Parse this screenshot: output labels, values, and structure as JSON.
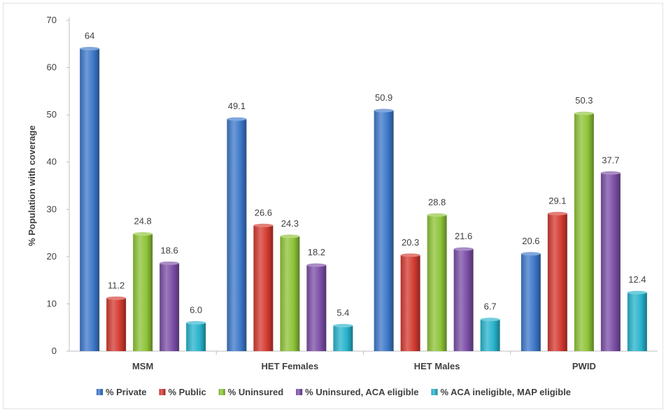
{
  "chart_data": {
    "type": "bar",
    "title": "",
    "xlabel": "",
    "ylabel": "% Population with coverage",
    "ylim": [
      0,
      70
    ],
    "yticks": [
      0,
      10,
      20,
      30,
      40,
      50,
      60,
      70
    ],
    "grid": false,
    "legend_position": "bottom",
    "categories": [
      "MSM",
      "HET Females",
      "HET Males",
      "PWID"
    ],
    "series": [
      {
        "name": "% Private",
        "color": "#3d78c9",
        "values": [
          64,
          49.1,
          50.9,
          20.6
        ],
        "labels": [
          "64",
          "49.1",
          "50.9",
          "20.6"
        ]
      },
      {
        "name": "% Public",
        "color": "#d33a30",
        "values": [
          11.2,
          26.6,
          20.3,
          29.1
        ],
        "labels": [
          "11.2",
          "26.6",
          "20.3",
          "29.1"
        ]
      },
      {
        "name": "% Uninsured",
        "color": "#8ec337",
        "values": [
          24.8,
          24.3,
          28.8,
          50.3
        ],
        "labels": [
          "24.8",
          "24.3",
          "28.8",
          "50.3"
        ]
      },
      {
        "name": "% Uninsured, ACA eligible",
        "color": "#7b4ea6",
        "values": [
          18.6,
          18.2,
          21.6,
          37.7
        ],
        "labels": [
          "18.6",
          "18.2",
          "21.6",
          "37.7"
        ]
      },
      {
        "name": "% ACA ineligible, MAP eligible",
        "color": "#27b3cc",
        "values": [
          6.0,
          5.4,
          6.7,
          12.4
        ],
        "labels": [
          "6.0",
          "5.4",
          "6.7",
          "12.4"
        ]
      }
    ]
  }
}
